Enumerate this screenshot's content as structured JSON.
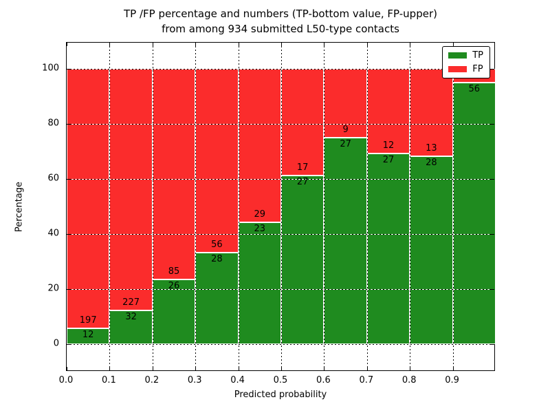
{
  "chart_data": {
    "type": "stacked_bar",
    "title_line1": "TP /FP percentage and numbers (TP-bottom value, FP-upper)",
    "title_line2": "from among 934 submitted L50-type contacts",
    "xlabel": "Predicted probability",
    "ylabel": "Percentage",
    "x_tick_labels": [
      "0.0",
      "0.1",
      "0.2",
      "0.3",
      "0.4",
      "0.5",
      "0.6",
      "0.7",
      "0.8",
      "0.9"
    ],
    "y_ticks": [
      {
        "value": 0,
        "label": "0"
      },
      {
        "value": 20,
        "label": "20"
      },
      {
        "value": 40,
        "label": "40"
      },
      {
        "value": 60,
        "label": "60"
      },
      {
        "value": 80,
        "label": "80"
      },
      {
        "value": 100,
        "label": "100"
      }
    ],
    "xlim": [
      0.0,
      1.0
    ],
    "ylim_hint": [
      -10,
      110
    ],
    "grid_style": "dotted",
    "total_contacts_in_title": 934,
    "colors": {
      "tp": "#1f8b1f",
      "fp": "#fb2c2c"
    },
    "legend": {
      "position": "upper-right",
      "items": [
        {
          "label": "TP",
          "color": "#1f8b1f"
        },
        {
          "label": "FP",
          "color": "#fb2c2c"
        }
      ]
    },
    "bins": [
      {
        "range": [
          0.0,
          0.1
        ],
        "tp_count": 12,
        "fp_count": 197,
        "tp_pct": 5.74
      },
      {
        "range": [
          0.1,
          0.2
        ],
        "tp_count": 32,
        "fp_count": 227,
        "tp_pct": 12.36
      },
      {
        "range": [
          0.2,
          0.3
        ],
        "tp_count": 26,
        "fp_count": 85,
        "tp_pct": 23.42
      },
      {
        "range": [
          0.3,
          0.4
        ],
        "tp_count": 28,
        "fp_count": 56,
        "tp_pct": 33.33
      },
      {
        "range": [
          0.4,
          0.5
        ],
        "tp_count": 23,
        "fp_count": 29,
        "tp_pct": 44.23
      },
      {
        "range": [
          0.5,
          0.6
        ],
        "tp_count": 27,
        "fp_count": 17,
        "tp_pct": 61.36
      },
      {
        "range": [
          0.6,
          0.7
        ],
        "tp_count": 27,
        "fp_count": 9,
        "tp_pct": 75.0
      },
      {
        "range": [
          0.7,
          0.8
        ],
        "tp_count": 27,
        "fp_count": 12,
        "tp_pct": 69.23
      },
      {
        "range": [
          0.8,
          0.9
        ],
        "tp_count": 28,
        "fp_count": 13,
        "tp_pct": 68.29
      },
      {
        "range": [
          0.9,
          1.0
        ],
        "tp_count": 56,
        "fp_count": null,
        "tp_pct": 94.92
      }
    ]
  }
}
